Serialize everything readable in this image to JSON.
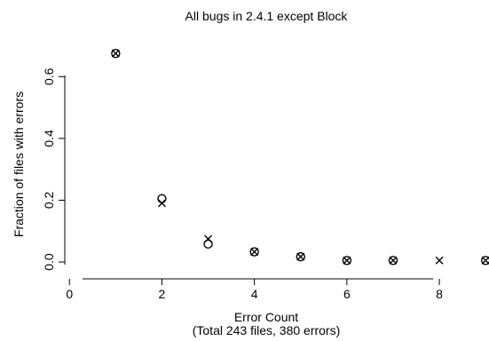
{
  "chart_data": {
    "type": "scatter",
    "title": "All bugs in 2.4.1 except Block",
    "xlabel": "Error Count",
    "xlabel_sub": "(Total 243 files, 380 errors)",
    "ylabel": "Fraction of files with errors",
    "xlim": [
      -0.35,
      9.15
    ],
    "ylim": [
      -0.02,
      0.71
    ],
    "x_ticks": [
      0,
      2,
      4,
      6,
      8
    ],
    "x_tick_labels": [
      "0",
      "2",
      "4",
      "6",
      "8"
    ],
    "y_ticks": [
      0.0,
      0.2,
      0.4,
      0.6
    ],
    "y_tick_labels": [
      "0.0",
      "0.2",
      "0.4",
      "0.6"
    ],
    "grid": false,
    "series": [
      {
        "marker": "circle",
        "points": [
          {
            "x": 1,
            "y": 0.675
          },
          {
            "x": 2,
            "y": 0.205
          },
          {
            "x": 3,
            "y": 0.058
          },
          {
            "x": 4,
            "y": 0.033
          },
          {
            "x": 5,
            "y": 0.017
          },
          {
            "x": 6,
            "y": 0.005
          },
          {
            "x": 7,
            "y": 0.005
          },
          {
            "x": 9,
            "y": 0.005
          }
        ]
      },
      {
        "marker": "x",
        "points": [
          {
            "x": 1,
            "y": 0.675
          },
          {
            "x": 2,
            "y": 0.19
          },
          {
            "x": 3,
            "y": 0.075
          },
          {
            "x": 4,
            "y": 0.033
          },
          {
            "x": 5,
            "y": 0.017
          },
          {
            "x": 6,
            "y": 0.005
          },
          {
            "x": 7,
            "y": 0.005
          },
          {
            "x": 8,
            "y": 0.005
          },
          {
            "x": 9,
            "y": 0.005
          }
        ]
      }
    ]
  }
}
